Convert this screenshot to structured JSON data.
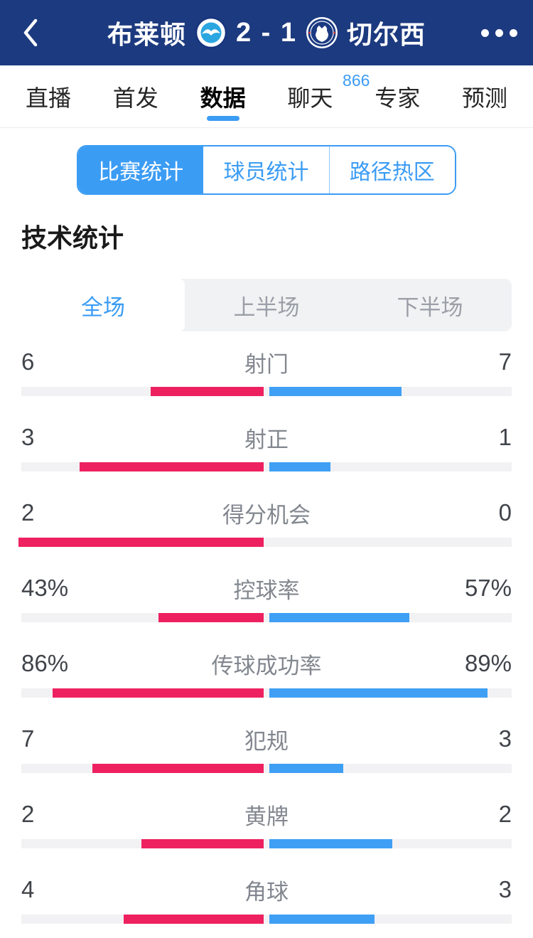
{
  "header": {
    "home_team": "布莱顿",
    "away_team": "切尔西",
    "score": "2 - 1",
    "back_icon": "chevron-left",
    "more_icon": "ellipsis-horizontal",
    "home_logo": "brighton-crest",
    "away_logo": "chelsea-crest",
    "background_color": "#1c3a7f"
  },
  "tabs": {
    "items": [
      {
        "label": "直播"
      },
      {
        "label": "首发"
      },
      {
        "label": "数据",
        "active": true
      },
      {
        "label": "聊天",
        "badge": "866"
      },
      {
        "label": "专家"
      },
      {
        "label": "预测"
      }
    ],
    "active_label": "数据",
    "accent_color": "#3b9cf4"
  },
  "stat_type_segments": {
    "items": [
      "比赛统计",
      "球员统计",
      "路径热区"
    ],
    "selected": "比赛统计"
  },
  "section_title": "技术统计",
  "period_tabs": {
    "items": [
      "全场",
      "上半场",
      "下半场"
    ],
    "selected": "全场"
  },
  "stats": {
    "home_color": "#ee2160",
    "away_color": "#3f9ff4",
    "rows": [
      {
        "label": "射门",
        "left": "6",
        "right": "7"
      },
      {
        "label": "射正",
        "left": "3",
        "right": "1"
      },
      {
        "label": "得分机会",
        "left": "2",
        "right": "0"
      },
      {
        "label": "控球率",
        "left": "43%",
        "right": "57%"
      },
      {
        "label": "传球成功率",
        "left": "86%",
        "right": "89%"
      },
      {
        "label": "犯规",
        "left": "7",
        "right": "3"
      },
      {
        "label": "黄牌",
        "left": "2",
        "right": "2"
      },
      {
        "label": "角球",
        "left": "4",
        "right": "3"
      }
    ]
  }
}
